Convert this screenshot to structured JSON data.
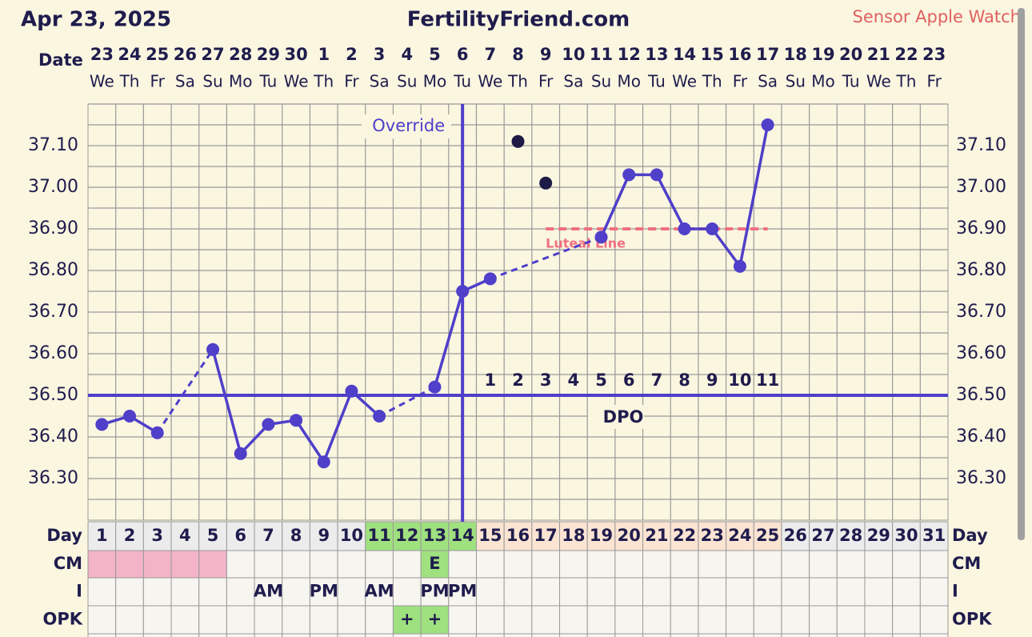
{
  "header": {
    "date": "Apr 23, 2025",
    "site": "FertilityFriend.com",
    "sensor": "Sensor Apple Watch"
  },
  "chart_data": {
    "type": "line",
    "x": [
      1,
      2,
      3,
      4,
      5,
      6,
      7,
      8,
      9,
      10,
      11,
      12,
      13,
      14,
      15,
      16,
      17,
      18,
      19,
      20,
      21,
      22,
      23,
      24,
      25,
      26,
      27,
      28,
      29,
      30,
      31
    ],
    "dates": [
      23,
      24,
      25,
      26,
      27,
      28,
      29,
      30,
      1,
      2,
      3,
      4,
      5,
      6,
      7,
      8,
      9,
      10,
      11,
      12,
      13,
      14,
      15,
      16,
      17,
      18,
      19,
      20,
      21,
      22,
      23
    ],
    "weekdays": [
      "We",
      "Th",
      "Fr",
      "Sa",
      "Su",
      "Mo",
      "Tu",
      "We",
      "Th",
      "Fr",
      "Sa",
      "Su",
      "Mo",
      "Tu",
      "We",
      "Th",
      "Fr",
      "Sa",
      "Su",
      "Mo",
      "Tu",
      "We",
      "Th",
      "Fr",
      "Sa",
      "Su",
      "Mo",
      "Tu",
      "We",
      "Th",
      "Fr"
    ],
    "row_labels": {
      "date": "Date",
      "day": "Day",
      "cm": "CM",
      "i": "I",
      "opk": "OPK"
    },
    "series": [
      {
        "color": "#4f3fc9",
        "values": [
          36.43,
          36.45,
          36.41,
          null,
          36.61,
          36.36,
          36.43,
          36.44,
          36.34,
          36.51,
          36.45,
          null,
          36.52,
          36.75,
          36.78,
          null,
          null,
          null,
          36.88,
          37.03,
          37.03,
          36.9,
          36.9,
          36.81,
          37.15,
          null,
          null,
          null,
          null,
          null,
          null
        ]
      },
      {
        "color": "#1d1a45",
        "style": "points",
        "values": [
          null,
          null,
          null,
          null,
          null,
          null,
          null,
          null,
          null,
          null,
          null,
          null,
          null,
          null,
          null,
          37.11,
          37.01,
          null,
          null,
          null,
          null,
          null,
          null,
          null,
          null,
          null,
          null,
          null,
          null,
          null,
          null
        ]
      }
    ],
    "ylim": [
      36.2,
      37.2
    ],
    "yticks": [
      {
        "value": 36.3,
        "label": "36.30"
      },
      {
        "value": 36.4,
        "label": "36.40"
      },
      {
        "value": 36.5,
        "label": "36.50"
      },
      {
        "value": 36.6,
        "label": "36.60"
      },
      {
        "value": 36.7,
        "label": "36.70"
      },
      {
        "value": 36.8,
        "label": "36.80"
      },
      {
        "value": 36.9,
        "label": "36.90"
      },
      {
        "value": 37.0,
        "label": "37.00"
      },
      {
        "value": 37.1,
        "label": "37.10"
      }
    ],
    "grid": true,
    "coverline": {
      "value": 36.5,
      "color": "#4f3fc9"
    },
    "override": {
      "x": 14,
      "label": "Override",
      "color": "#4f3fc9"
    },
    "luteal_line": {
      "value": 36.9,
      "x": [
        17,
        25
      ],
      "label": "Luteal Line",
      "color": "#f07080"
    },
    "dpo": {
      "label": "DPO",
      "values": [
        null,
        null,
        null,
        null,
        null,
        null,
        null,
        null,
        null,
        null,
        null,
        null,
        null,
        null,
        1,
        2,
        3,
        4,
        5,
        6,
        7,
        8,
        9,
        10,
        11,
        null,
        null,
        null,
        null,
        null,
        null
      ]
    },
    "day_colors": [
      "#ececec",
      "#ececec",
      "#ececec",
      "#ececec",
      "#ececec",
      "#ececec",
      "#ececec",
      "#ececec",
      "#ececec",
      "#ececec",
      "#9fe07f",
      "#9fe07f",
      "#9fe07f",
      "#9fe07f",
      "#fbe4d2",
      "#fbe4d2",
      "#fbe4d2",
      "#fbe4d2",
      "#fbe4d2",
      "#fbe4d2",
      "#fbe4d2",
      "#fbe4d2",
      "#fbe4d2",
      "#fbe4d2",
      "#fbe4d2",
      "#ececec",
      "#ececec",
      "#ececec",
      "#ececec",
      "#ececec",
      "#ececec"
    ],
    "cm": {
      "labels": [
        null,
        null,
        null,
        null,
        null,
        null,
        null,
        null,
        null,
        null,
        null,
        null,
        "E",
        null,
        null,
        null,
        null,
        null,
        null,
        null,
        null,
        null,
        null,
        null,
        null,
        null,
        null,
        null,
        null,
        null,
        null
      ],
      "colors": [
        "#f4b4c8",
        "#f4b4c8",
        "#f4b4c8",
        "#f4b4c8",
        "#f4b4c8",
        null,
        null,
        null,
        null,
        null,
        null,
        null,
        "#9fe07f",
        null,
        null,
        null,
        null,
        null,
        null,
        null,
        null,
        null,
        null,
        null,
        null,
        null,
        null,
        null,
        null,
        null,
        null
      ]
    },
    "intercourse": {
      "labels": [
        null,
        null,
        null,
        null,
        null,
        null,
        "AM",
        null,
        "PM",
        null,
        "AM",
        null,
        "PM",
        "PM",
        null,
        null,
        null,
        null,
        null,
        null,
        null,
        null,
        null,
        null,
        null,
        null,
        null,
        null,
        null,
        null,
        null
      ]
    },
    "opk": {
      "labels": [
        null,
        null,
        null,
        null,
        null,
        null,
        null,
        null,
        null,
        null,
        null,
        "+",
        "+",
        null,
        null,
        null,
        null,
        null,
        null,
        null,
        null,
        null,
        null,
        null,
        null,
        null,
        null,
        null,
        null,
        null,
        null
      ],
      "colors": [
        null,
        null,
        null,
        null,
        null,
        null,
        null,
        null,
        null,
        null,
        null,
        "#9fe07f",
        "#9fe07f",
        null,
        null,
        null,
        null,
        null,
        null,
        null,
        null,
        null,
        null,
        null,
        null,
        null,
        null,
        null,
        null,
        null,
        null
      ]
    }
  }
}
